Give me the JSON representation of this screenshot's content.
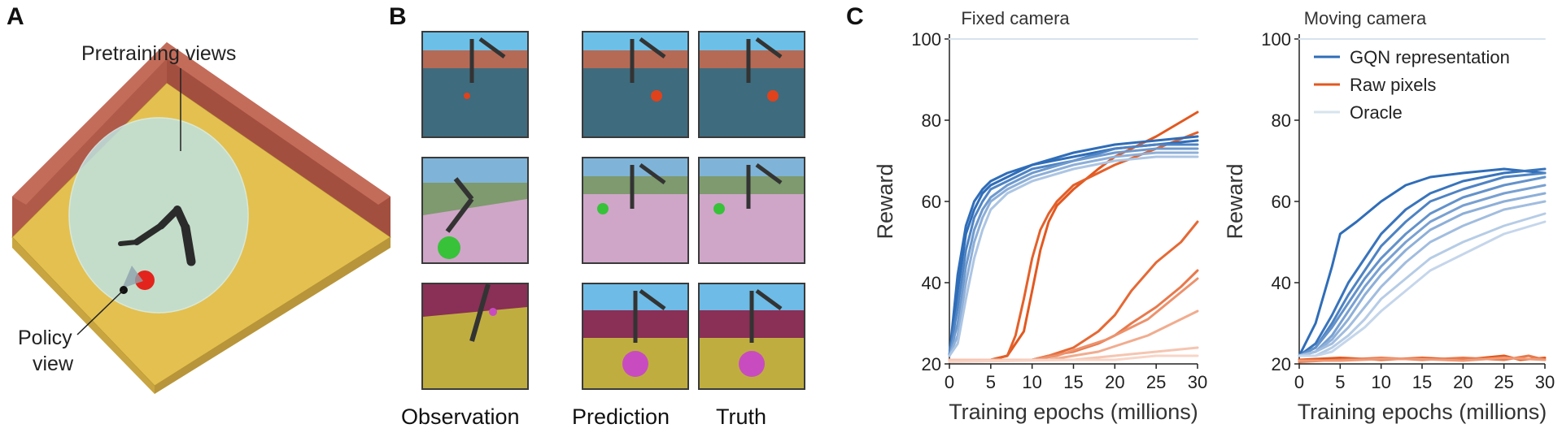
{
  "panels": {
    "a": {
      "letter": "A",
      "pretraining_label": "Pretraining views",
      "policy_label_line1": "Policy",
      "policy_label_line2": "view"
    },
    "b": {
      "letter": "B",
      "captions": {
        "observation": "Observation",
        "prediction": "Prediction",
        "truth": "Truth"
      }
    },
    "c": {
      "letter": "C"
    }
  },
  "colors": {
    "gqn": "#2f6db8",
    "raw": "#e2581f",
    "oracle": "#d7e3ee",
    "wall": "#b05a4a",
    "floor": "#e3c050",
    "sphere": "#bfe3e0"
  },
  "chart_data": [
    {
      "type": "line",
      "title": "Fixed camera",
      "xlabel": "Training epochs (millions)",
      "ylabel": "Reward",
      "xlim": [
        0,
        30
      ],
      "ylim": [
        20,
        100
      ],
      "xticks": [
        0,
        5,
        10,
        15,
        20,
        25,
        30
      ],
      "yticks": [
        20,
        40,
        60,
        80,
        100
      ],
      "series": [
        {
          "group": "gqn",
          "shade": 1.0,
          "x": [
            0,
            1,
            2,
            3,
            4,
            5,
            7,
            10,
            15,
            20,
            25,
            30
          ],
          "y": [
            22,
            42,
            54,
            60,
            63,
            65,
            67,
            69,
            71,
            73,
            74,
            75
          ]
        },
        {
          "group": "gqn",
          "shade": 1.0,
          "x": [
            0,
            1,
            2,
            3,
            4,
            5,
            7,
            10,
            15,
            20,
            25,
            30
          ],
          "y": [
            22,
            38,
            52,
            58,
            62,
            64,
            66,
            69,
            72,
            74,
            75,
            76
          ]
        },
        {
          "group": "gqn",
          "shade": 0.85,
          "x": [
            0,
            1,
            2,
            3,
            4,
            5,
            7,
            10,
            15,
            20,
            25,
            30
          ],
          "y": [
            22,
            34,
            48,
            56,
            60,
            63,
            65,
            68,
            70,
            73,
            74,
            74
          ]
        },
        {
          "group": "gqn",
          "shade": 0.7,
          "x": [
            0,
            1,
            2,
            3,
            4,
            5,
            7,
            10,
            15,
            20,
            25,
            30
          ],
          "y": [
            22,
            30,
            44,
            53,
            58,
            61,
            64,
            67,
            70,
            72,
            73,
            73
          ]
        },
        {
          "group": "gqn",
          "shade": 0.55,
          "x": [
            0,
            1,
            2,
            3,
            4,
            5,
            7,
            10,
            15,
            20,
            25,
            30
          ],
          "y": [
            22,
            27,
            40,
            50,
            56,
            60,
            63,
            66,
            69,
            71,
            72,
            72
          ]
        },
        {
          "group": "gqn",
          "shade": 0.4,
          "x": [
            0,
            1,
            2,
            3,
            4,
            5,
            7,
            10,
            15,
            20,
            25,
            30
          ],
          "y": [
            22,
            25,
            36,
            46,
            53,
            58,
            62,
            65,
            68,
            70,
            71,
            71
          ]
        },
        {
          "group": "raw",
          "shade": 1.0,
          "x": [
            0,
            5,
            7,
            9,
            10,
            11,
            12,
            13,
            15,
            18,
            20,
            25,
            30
          ],
          "y": [
            21,
            21,
            22,
            28,
            38,
            48,
            55,
            59,
            63,
            68,
            71,
            76,
            82
          ]
        },
        {
          "group": "raw",
          "shade": 0.95,
          "x": [
            0,
            5,
            7,
            8,
            9,
            10,
            11,
            12,
            13,
            15,
            20,
            25,
            30
          ],
          "y": [
            21,
            21,
            22,
            27,
            36,
            46,
            53,
            57,
            60,
            64,
            69,
            73,
            77
          ]
        },
        {
          "group": "raw",
          "shade": 0.9,
          "x": [
            0,
            8,
            10,
            12,
            15,
            18,
            20,
            22,
            25,
            28,
            30
          ],
          "y": [
            21,
            21,
            21,
            22,
            24,
            28,
            32,
            38,
            45,
            50,
            55
          ]
        },
        {
          "group": "raw",
          "shade": 0.8,
          "x": [
            0,
            10,
            12,
            15,
            18,
            20,
            22,
            25,
            28,
            30
          ],
          "y": [
            21,
            21,
            22,
            23,
            25,
            27,
            30,
            34,
            39,
            43
          ]
        },
        {
          "group": "raw",
          "shade": 0.65,
          "x": [
            0,
            10,
            13,
            16,
            19,
            21,
            24,
            27,
            30
          ],
          "y": [
            21,
            21,
            22,
            24,
            26,
            28,
            31,
            36,
            41
          ]
        },
        {
          "group": "raw",
          "shade": 0.5,
          "x": [
            0,
            12,
            15,
            18,
            21,
            24,
            27,
            30
          ],
          "y": [
            21,
            21,
            22,
            23,
            25,
            27,
            30,
            33
          ]
        },
        {
          "group": "raw",
          "shade": 0.35,
          "x": [
            0,
            15,
            20,
            25,
            30
          ],
          "y": [
            21,
            21,
            22,
            23,
            24
          ]
        },
        {
          "group": "raw",
          "shade": 0.25,
          "x": [
            0,
            15,
            20,
            25,
            30
          ],
          "y": [
            20.5,
            21,
            21,
            22,
            22
          ]
        },
        {
          "group": "oracle",
          "shade": 1.0,
          "x": [
            0,
            30
          ],
          "y": [
            100,
            100
          ]
        }
      ]
    },
    {
      "type": "line",
      "title": "Moving camera",
      "xlabel": "Training epochs (millions)",
      "ylabel": "Reward",
      "xlim": [
        0,
        30
      ],
      "ylim": [
        20,
        100
      ],
      "xticks": [
        0,
        5,
        10,
        15,
        20,
        25,
        30
      ],
      "yticks": [
        20,
        40,
        60,
        80,
        100
      ],
      "legend": {
        "position": "top-right",
        "entries": [
          {
            "label": "GQN representation",
            "group": "gqn"
          },
          {
            "label": "Raw pixels",
            "group": "raw"
          },
          {
            "label": "Oracle",
            "group": "oracle"
          }
        ]
      },
      "series": [
        {
          "group": "gqn",
          "shade": 1.0,
          "x": [
            0,
            2,
            4,
            5,
            7,
            10,
            13,
            16,
            20,
            25,
            30
          ],
          "y": [
            22,
            30,
            44,
            52,
            55,
            60,
            64,
            66,
            67,
            68,
            67
          ]
        },
        {
          "group": "gqn",
          "shade": 0.95,
          "x": [
            0,
            2,
            4,
            6,
            8,
            10,
            13,
            16,
            20,
            25,
            30
          ],
          "y": [
            22,
            25,
            32,
            40,
            46,
            52,
            58,
            62,
            65,
            67,
            68
          ]
        },
        {
          "group": "gqn",
          "shade": 0.85,
          "x": [
            0,
            2,
            4,
            6,
            8,
            10,
            13,
            16,
            20,
            25,
            30
          ],
          "y": [
            22,
            24,
            30,
            37,
            43,
            49,
            55,
            60,
            63,
            66,
            67
          ]
        },
        {
          "group": "gqn",
          "shade": 0.75,
          "x": [
            0,
            2,
            4,
            6,
            8,
            10,
            13,
            16,
            20,
            25,
            30
          ],
          "y": [
            22,
            24,
            29,
            35,
            41,
            46,
            52,
            57,
            61,
            64,
            66
          ]
        },
        {
          "group": "gqn",
          "shade": 0.65,
          "x": [
            0,
            2,
            4,
            6,
            8,
            10,
            13,
            16,
            20,
            25,
            30
          ],
          "y": [
            22,
            23,
            27,
            33,
            39,
            44,
            50,
            55,
            59,
            62,
            64
          ]
        },
        {
          "group": "gqn",
          "shade": 0.55,
          "x": [
            0,
            2,
            4,
            6,
            8,
            10,
            13,
            16,
            20,
            25,
            30
          ],
          "y": [
            22,
            23,
            26,
            31,
            37,
            42,
            48,
            53,
            57,
            60,
            62
          ]
        },
        {
          "group": "gqn",
          "shade": 0.45,
          "x": [
            0,
            2,
            4,
            6,
            8,
            10,
            13,
            16,
            20,
            25,
            30
          ],
          "y": [
            22,
            23,
            25,
            29,
            34,
            39,
            45,
            50,
            54,
            58,
            60
          ]
        },
        {
          "group": "gqn",
          "shade": 0.35,
          "x": [
            0,
            2,
            4,
            6,
            8,
            10,
            13,
            16,
            20,
            25,
            30
          ],
          "y": [
            22,
            22,
            24,
            27,
            31,
            36,
            41,
            46,
            50,
            54,
            57
          ]
        },
        {
          "group": "gqn",
          "shade": 0.28,
          "x": [
            0,
            2,
            4,
            6,
            8,
            10,
            13,
            16,
            20,
            25,
            30
          ],
          "y": [
            22,
            22,
            23,
            26,
            29,
            33,
            38,
            43,
            47,
            52,
            55
          ]
        },
        {
          "group": "raw",
          "shade": 1.0,
          "x": [
            0,
            5,
            10,
            15,
            20,
            25,
            27,
            30
          ],
          "y": [
            21,
            21.5,
            21,
            21.5,
            21,
            22,
            21,
            21.5
          ]
        },
        {
          "group": "raw",
          "shade": 0.8,
          "x": [
            0,
            5,
            10,
            15,
            20,
            25,
            28,
            30
          ],
          "y": [
            20.5,
            21,
            21.5,
            21,
            21.5,
            21,
            22,
            21
          ]
        },
        {
          "group": "raw",
          "shade": 0.6,
          "x": [
            0,
            5,
            10,
            15,
            20,
            25,
            30
          ],
          "y": [
            20.8,
            20.8,
            21.2,
            21.2,
            20.8,
            21.5,
            21
          ]
        },
        {
          "group": "oracle",
          "shade": 1.0,
          "x": [
            0,
            30
          ],
          "y": [
            100,
            100
          ]
        }
      ]
    }
  ]
}
